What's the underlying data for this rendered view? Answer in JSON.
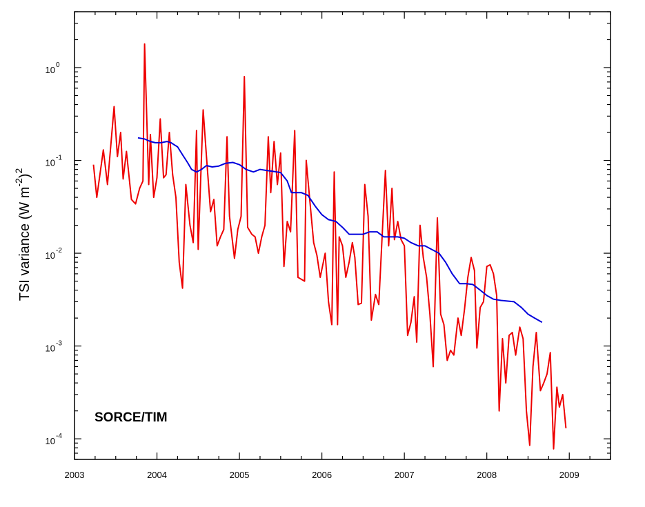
{
  "chart_data": {
    "type": "line",
    "title": "",
    "xlabel": "",
    "ylabel": {
      "main": "TSI variance (W m",
      "exp1": "-2",
      "close": ")",
      "exp2": "2"
    },
    "annotation": "SORCE/TIM",
    "y_scale": "log",
    "xlim": [
      2003.0,
      2009.5
    ],
    "ylim": [
      6e-05,
      4.0
    ],
    "x_ticks": [
      {
        "value": 2003,
        "label": "2003"
      },
      {
        "value": 2004,
        "label": "2004"
      },
      {
        "value": 2005,
        "label": "2005"
      },
      {
        "value": 2006,
        "label": "2006"
      },
      {
        "value": 2007,
        "label": "2007"
      },
      {
        "value": 2008,
        "label": "2008"
      },
      {
        "value": 2009,
        "label": "2009"
      }
    ],
    "y_ticks": [
      {
        "value": 0.0001,
        "base": "10",
        "exp": "-4"
      },
      {
        "value": 0.001,
        "base": "10",
        "exp": "-3"
      },
      {
        "value": 0.01,
        "base": "10",
        "exp": "-2"
      },
      {
        "value": 0.1,
        "base": "10",
        "exp": "-1"
      },
      {
        "value": 1,
        "base": "10",
        "exp": "0"
      }
    ],
    "grid": false,
    "series": [
      {
        "color": "#ee0000",
        "points": [
          [
            2003.23,
            0.09
          ],
          [
            2003.27,
            0.04
          ],
          [
            2003.35,
            0.13
          ],
          [
            2003.4,
            0.055
          ],
          [
            2003.48,
            0.38
          ],
          [
            2003.52,
            0.11
          ],
          [
            2003.56,
            0.2
          ],
          [
            2003.59,
            0.063
          ],
          [
            2003.63,
            0.125
          ],
          [
            2003.69,
            0.038
          ],
          [
            2003.74,
            0.034
          ],
          [
            2003.79,
            0.05
          ],
          [
            2003.83,
            0.06
          ],
          [
            2003.85,
            1.8
          ],
          [
            2003.9,
            0.055
          ],
          [
            2003.92,
            0.19
          ],
          [
            2003.96,
            0.04
          ],
          [
            2004.0,
            0.065
          ],
          [
            2004.04,
            0.28
          ],
          [
            2004.08,
            0.065
          ],
          [
            2004.11,
            0.07
          ],
          [
            2004.15,
            0.2
          ],
          [
            2004.19,
            0.07
          ],
          [
            2004.23,
            0.04
          ],
          [
            2004.27,
            0.008
          ],
          [
            2004.31,
            0.0042
          ],
          [
            2004.35,
            0.055
          ],
          [
            2004.4,
            0.02
          ],
          [
            2004.44,
            0.013
          ],
          [
            2004.48,
            0.21
          ],
          [
            2004.5,
            0.011
          ],
          [
            2004.56,
            0.35
          ],
          [
            2004.6,
            0.11
          ],
          [
            2004.65,
            0.028
          ],
          [
            2004.69,
            0.038
          ],
          [
            2004.73,
            0.012
          ],
          [
            2004.77,
            0.015
          ],
          [
            2004.81,
            0.018
          ],
          [
            2004.85,
            0.18
          ],
          [
            2004.88,
            0.025
          ],
          [
            2004.94,
            0.0088
          ],
          [
            2004.98,
            0.018
          ],
          [
            2005.02,
            0.025
          ],
          [
            2005.06,
            0.8
          ],
          [
            2005.1,
            0.019
          ],
          [
            2005.15,
            0.016
          ],
          [
            2005.19,
            0.015
          ],
          [
            2005.23,
            0.01
          ],
          [
            2005.27,
            0.015
          ],
          [
            2005.31,
            0.02
          ],
          [
            2005.35,
            0.18
          ],
          [
            2005.38,
            0.045
          ],
          [
            2005.42,
            0.16
          ],
          [
            2005.46,
            0.055
          ],
          [
            2005.5,
            0.12
          ],
          [
            2005.54,
            0.0072
          ],
          [
            2005.58,
            0.022
          ],
          [
            2005.62,
            0.017
          ],
          [
            2005.67,
            0.21
          ],
          [
            2005.71,
            0.0055
          ],
          [
            2005.79,
            0.005
          ],
          [
            2005.81,
            0.1
          ],
          [
            2005.85,
            0.04
          ],
          [
            2005.9,
            0.013
          ],
          [
            2005.94,
            0.0095
          ],
          [
            2005.98,
            0.0055
          ],
          [
            2006.04,
            0.01
          ],
          [
            2006.08,
            0.003
          ],
          [
            2006.12,
            0.0017
          ],
          [
            2006.15,
            0.075
          ],
          [
            2006.19,
            0.0017
          ],
          [
            2006.21,
            0.015
          ],
          [
            2006.25,
            0.012
          ],
          [
            2006.29,
            0.0055
          ],
          [
            2006.33,
            0.008
          ],
          [
            2006.37,
            0.013
          ],
          [
            2006.4,
            0.009
          ],
          [
            2006.44,
            0.0028
          ],
          [
            2006.48,
            0.0029
          ],
          [
            2006.52,
            0.055
          ],
          [
            2006.56,
            0.025
          ],
          [
            2006.6,
            0.0019
          ],
          [
            2006.65,
            0.0036
          ],
          [
            2006.69,
            0.0028
          ],
          [
            2006.73,
            0.015
          ],
          [
            2006.77,
            0.078
          ],
          [
            2006.81,
            0.012
          ],
          [
            2006.85,
            0.05
          ],
          [
            2006.88,
            0.014
          ],
          [
            2006.92,
            0.022
          ],
          [
            2006.96,
            0.014
          ],
          [
            2007.0,
            0.012
          ],
          [
            2007.04,
            0.0013
          ],
          [
            2007.08,
            0.0018
          ],
          [
            2007.12,
            0.0034
          ],
          [
            2007.15,
            0.0011
          ],
          [
            2007.19,
            0.02
          ],
          [
            2007.23,
            0.009
          ],
          [
            2007.27,
            0.0055
          ],
          [
            2007.31,
            0.0022
          ],
          [
            2007.35,
            0.0006
          ],
          [
            2007.4,
            0.024
          ],
          [
            2007.44,
            0.0022
          ],
          [
            2007.48,
            0.0017
          ],
          [
            2007.52,
            0.0007
          ],
          [
            2007.56,
            0.0009
          ],
          [
            2007.6,
            0.0008
          ],
          [
            2007.65,
            0.002
          ],
          [
            2007.69,
            0.0013
          ],
          [
            2007.73,
            0.0025
          ],
          [
            2007.77,
            0.0055
          ],
          [
            2007.81,
            0.009
          ],
          [
            2007.85,
            0.0065
          ],
          [
            2007.88,
            0.00095
          ],
          [
            2007.92,
            0.0026
          ],
          [
            2007.96,
            0.003
          ],
          [
            2008.0,
            0.0072
          ],
          [
            2008.04,
            0.0075
          ],
          [
            2008.08,
            0.006
          ],
          [
            2008.12,
            0.0035
          ],
          [
            2008.15,
            0.0002
          ],
          [
            2008.19,
            0.0012
          ],
          [
            2008.23,
            0.0004
          ],
          [
            2008.27,
            0.0013
          ],
          [
            2008.31,
            0.0014
          ],
          [
            2008.35,
            0.0008
          ],
          [
            2008.4,
            0.0016
          ],
          [
            2008.44,
            0.0012
          ],
          [
            2008.48,
            0.0002
          ],
          [
            2008.52,
            8.5e-05
          ],
          [
            2008.56,
            0.0006
          ],
          [
            2008.6,
            0.0014
          ],
          [
            2008.65,
            0.00033
          ],
          [
            2008.69,
            0.0004
          ],
          [
            2008.73,
            0.0005
          ],
          [
            2008.77,
            0.00085
          ],
          [
            2008.81,
            7.8e-05
          ],
          [
            2008.85,
            0.00036
          ],
          [
            2008.88,
            0.00022
          ],
          [
            2008.92,
            0.0003
          ],
          [
            2008.96,
            0.00013
          ]
        ]
      },
      {
        "color": "#0000dd",
        "points": [
          [
            2003.77,
            0.175
          ],
          [
            2003.85,
            0.17
          ],
          [
            2003.92,
            0.16
          ],
          [
            2003.98,
            0.155
          ],
          [
            2004.05,
            0.155
          ],
          [
            2004.12,
            0.16
          ],
          [
            2004.17,
            0.155
          ],
          [
            2004.25,
            0.14
          ],
          [
            2004.31,
            0.115
          ],
          [
            2004.37,
            0.095
          ],
          [
            2004.42,
            0.08
          ],
          [
            2004.48,
            0.075
          ],
          [
            2004.54,
            0.08
          ],
          [
            2004.6,
            0.088
          ],
          [
            2004.67,
            0.085
          ],
          [
            2004.75,
            0.087
          ],
          [
            2004.83,
            0.093
          ],
          [
            2004.92,
            0.095
          ],
          [
            2005.0,
            0.09
          ],
          [
            2005.08,
            0.08
          ],
          [
            2005.17,
            0.075
          ],
          [
            2005.25,
            0.08
          ],
          [
            2005.33,
            0.078
          ],
          [
            2005.42,
            0.076
          ],
          [
            2005.5,
            0.074
          ],
          [
            2005.58,
            0.06
          ],
          [
            2005.63,
            0.045
          ],
          [
            2005.75,
            0.045
          ],
          [
            2005.83,
            0.042
          ],
          [
            2005.92,
            0.032
          ],
          [
            2006.0,
            0.026
          ],
          [
            2006.08,
            0.023
          ],
          [
            2006.17,
            0.022
          ],
          [
            2006.25,
            0.019
          ],
          [
            2006.33,
            0.016
          ],
          [
            2006.5,
            0.016
          ],
          [
            2006.58,
            0.017
          ],
          [
            2006.67,
            0.017
          ],
          [
            2006.75,
            0.015
          ],
          [
            2006.92,
            0.015
          ],
          [
            2007.0,
            0.0145
          ],
          [
            2007.08,
            0.013
          ],
          [
            2007.17,
            0.012
          ],
          [
            2007.25,
            0.012
          ],
          [
            2007.33,
            0.011
          ],
          [
            2007.42,
            0.01
          ],
          [
            2007.5,
            0.008
          ],
          [
            2007.58,
            0.006
          ],
          [
            2007.67,
            0.0047
          ],
          [
            2007.75,
            0.0047
          ],
          [
            2007.83,
            0.0046
          ],
          [
            2007.92,
            0.004
          ],
          [
            2008.0,
            0.0035
          ],
          [
            2008.08,
            0.0032
          ],
          [
            2008.17,
            0.0031
          ],
          [
            2008.33,
            0.003
          ],
          [
            2008.42,
            0.0026
          ],
          [
            2008.5,
            0.0022
          ],
          [
            2008.58,
            0.002
          ],
          [
            2008.67,
            0.0018
          ]
        ]
      }
    ]
  }
}
